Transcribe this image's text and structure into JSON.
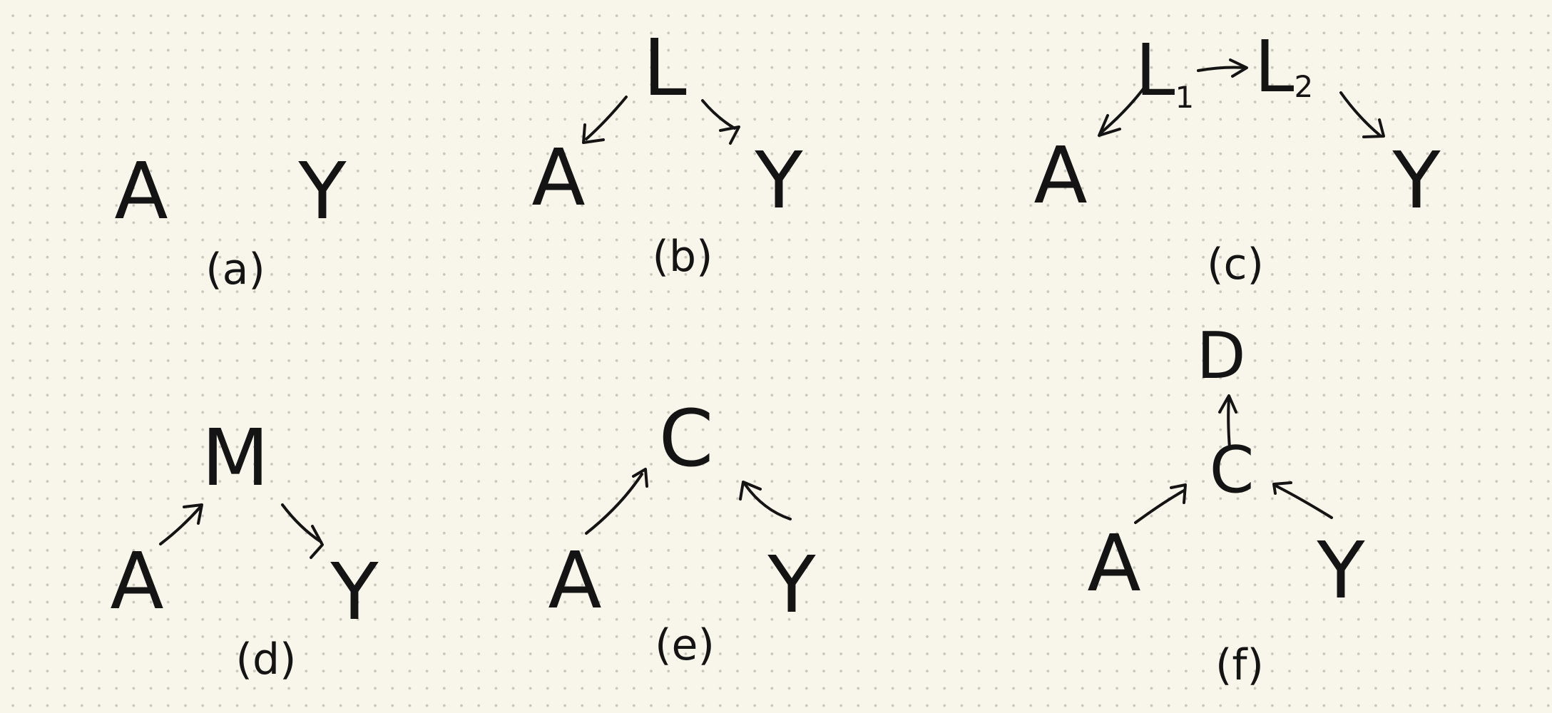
{
  "diagrams": [
    {
      "id": "a",
      "caption": "(a)",
      "nodes": [
        "A",
        "Y"
      ]
    },
    {
      "id": "b",
      "caption": "(b)",
      "nodes": [
        "L",
        "A",
        "Y"
      ]
    },
    {
      "id": "c",
      "caption": "(c)",
      "nodes": [
        "L1",
        "L2",
        "A",
        "Y"
      ]
    },
    {
      "id": "d",
      "caption": "(d)",
      "nodes": [
        "M",
        "A",
        "Y"
      ]
    },
    {
      "id": "e",
      "caption": "(e)",
      "nodes": [
        "C",
        "A",
        "Y"
      ]
    },
    {
      "id": "f",
      "caption": "(f)",
      "nodes": [
        "D",
        "C",
        "A",
        "Y"
      ]
    }
  ],
  "labels": {
    "A": "A",
    "Y": "Y",
    "L": "L",
    "L1": "L",
    "L1_sub": "1",
    "L2": "L",
    "L2_sub": "2",
    "M": "M",
    "C": "C",
    "D": "D"
  },
  "captions": {
    "a": "(a)",
    "b": "(b)",
    "c": "(c)",
    "d": "(d)",
    "e": "(e)",
    "f": "(f)"
  }
}
